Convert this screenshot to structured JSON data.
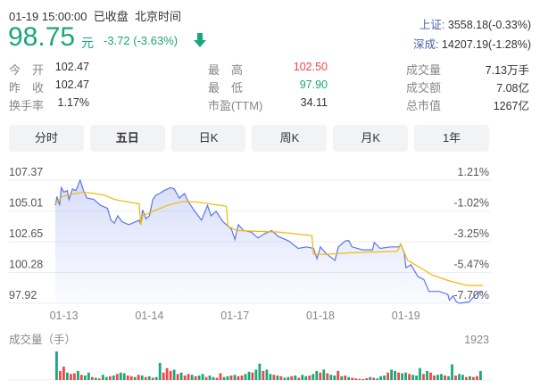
{
  "header": {
    "datetime": "01-19 15:00:00",
    "status": "已收盘",
    "timezone": "北京时间",
    "price": "98.75",
    "unit": "元",
    "change": "-3.72 (-3.63%)",
    "direction_icon": "arrow-down-icon"
  },
  "indices": [
    {
      "name": "上证:",
      "value": "3558.18(-0.33%)"
    },
    {
      "name": "深成:",
      "value": "14207.19(-1.28%)"
    }
  ],
  "stats": [
    [
      {
        "label": "今　开",
        "value": "102.47"
      },
      {
        "label": "最　高",
        "value": "102.50",
        "color": "#f04848"
      },
      {
        "label": "成交量",
        "value": "7.13万手"
      }
    ],
    [
      {
        "label": "昨　收",
        "value": "102.47"
      },
      {
        "label": "最　低",
        "value": "97.90",
        "color": "#1aa77a"
      },
      {
        "label": "成交额",
        "value": "7.08亿"
      }
    ],
    [
      {
        "label": "换手率",
        "value": "1.17%"
      },
      {
        "label": "市盈(TTM)",
        "value": "34.11"
      },
      {
        "label": "总市值",
        "value": "1267亿"
      }
    ]
  ],
  "tabs": [
    {
      "label": "分时"
    },
    {
      "label": "五日",
      "active": true
    },
    {
      "label": "日K"
    },
    {
      "label": "周K"
    },
    {
      "label": "月K"
    },
    {
      "label": "1年"
    }
  ],
  "colors": {
    "up": "#f04848",
    "down": "#1aa77a",
    "price_line": "#5b77e8",
    "avg_line": "#f5b800"
  },
  "chart_data": {
    "type": "line",
    "ylim": [
      97.92,
      107.37
    ],
    "y_ticks_left": [
      "107.37",
      "105.01",
      "102.65",
      "100.28",
      "97.92"
    ],
    "y_ticks_right": [
      "1.21%",
      "-1.02%",
      "-3.25%",
      "-5.47%",
      "-7.70%"
    ],
    "x_ticks": [
      "01-13",
      "01-14",
      "01-17",
      "01-18",
      "01-19"
    ],
    "grid": true,
    "price_series": [
      [
        0,
        105.43
      ],
      [
        0.02,
        106.12
      ],
      [
        0.05,
        105.43
      ],
      [
        0.07,
        106.8
      ],
      [
        0.1,
        106.46
      ],
      [
        0.14,
        106.57
      ],
      [
        0.16,
        105.89
      ],
      [
        0.2,
        106.69
      ],
      [
        0.24,
        106.57
      ],
      [
        0.29,
        107.37
      ],
      [
        0.33,
        106.57
      ],
      [
        0.37,
        106.0
      ],
      [
        0.45,
        105.89
      ],
      [
        0.53,
        105.43
      ],
      [
        0.61,
        105.21
      ],
      [
        0.65,
        104.3
      ],
      [
        0.69,
        104.07
      ],
      [
        0.73,
        104.64
      ],
      [
        0.78,
        104.18
      ],
      [
        0.86,
        103.95
      ],
      [
        0.94,
        104.18
      ],
      [
        0.98,
        104.3
      ],
      [
        1.0,
        103.95
      ],
      [
        1.02,
        105.09
      ],
      [
        1.06,
        104.41
      ],
      [
        1.1,
        104.64
      ],
      [
        1.14,
        105.89
      ],
      [
        1.18,
        106.23
      ],
      [
        1.22,
        106.35
      ],
      [
        1.27,
        106.57
      ],
      [
        1.35,
        106.8
      ],
      [
        1.39,
        106.69
      ],
      [
        1.45,
        106.0
      ],
      [
        1.51,
        106.35
      ],
      [
        1.55,
        105.78
      ],
      [
        1.63,
        104.98
      ],
      [
        1.71,
        104.3
      ],
      [
        1.78,
        105.43
      ],
      [
        1.82,
        104.64
      ],
      [
        1.88,
        104.98
      ],
      [
        1.96,
        104.18
      ],
      [
        2.02,
        103.84
      ],
      [
        2.06,
        103.61
      ],
      [
        2.1,
        102.82
      ],
      [
        2.14,
        103.95
      ],
      [
        2.2,
        103.5
      ],
      [
        2.29,
        103.39
      ],
      [
        2.37,
        102.93
      ],
      [
        2.45,
        103.27
      ],
      [
        2.53,
        103.5
      ],
      [
        2.61,
        103.04
      ],
      [
        2.73,
        102.7
      ],
      [
        2.84,
        102.13
      ],
      [
        2.94,
        102.25
      ],
      [
        3.02,
        102.13
      ],
      [
        3.06,
        101.34
      ],
      [
        3.1,
        102.25
      ],
      [
        3.16,
        101.79
      ],
      [
        3.2,
        101.56
      ],
      [
        3.27,
        101.22
      ],
      [
        3.31,
        102.25
      ],
      [
        3.39,
        102.7
      ],
      [
        3.43,
        102.75
      ],
      [
        3.47,
        102.25
      ],
      [
        3.59,
        102.02
      ],
      [
        3.71,
        102.02
      ],
      [
        3.73,
        102.59
      ],
      [
        3.8,
        102.13
      ],
      [
        3.92,
        102.25
      ],
      [
        4.02,
        102.25
      ],
      [
        4.04,
        102.47
      ],
      [
        4.08,
        101.79
      ],
      [
        4.1,
        100.65
      ],
      [
        4.16,
        100.88
      ],
      [
        4.24,
        99.97
      ],
      [
        4.31,
        99.74
      ],
      [
        4.37,
        98.83
      ],
      [
        4.49,
        98.83
      ],
      [
        4.59,
        98.6
      ],
      [
        4.61,
        98.15
      ],
      [
        4.65,
        98.49
      ],
      [
        4.69,
        98.03
      ],
      [
        4.73,
        97.92
      ],
      [
        4.84,
        98.03
      ],
      [
        4.92,
        98.6
      ],
      [
        4.96,
        98.83
      ],
      [
        5.0,
        98.72
      ]
    ],
    "avg_series": [
      [
        0,
        105.55
      ],
      [
        0.08,
        106.12
      ],
      [
        0.33,
        106.46
      ],
      [
        0.57,
        106.23
      ],
      [
        0.69,
        105.89
      ],
      [
        0.98,
        105.55
      ],
      [
        1.0,
        103.95
      ],
      [
        1.02,
        104.64
      ],
      [
        1.14,
        104.98
      ],
      [
        1.31,
        105.43
      ],
      [
        1.47,
        105.71
      ],
      [
        1.63,
        105.71
      ],
      [
        2.0,
        105.37
      ],
      [
        2.02,
        103.84
      ],
      [
        2.12,
        103.5
      ],
      [
        2.61,
        103.39
      ],
      [
        3.0,
        103.11
      ],
      [
        3.02,
        101.68
      ],
      [
        3.18,
        101.68
      ],
      [
        3.43,
        101.79
      ],
      [
        4.0,
        101.91
      ],
      [
        4.04,
        102.47
      ],
      [
        4.12,
        101.22
      ],
      [
        4.24,
        100.76
      ],
      [
        4.41,
        100.08
      ],
      [
        4.61,
        99.63
      ],
      [
        4.82,
        99.29
      ],
      [
        5.0,
        99.29
      ]
    ],
    "volume_label": "成交量（手）",
    "volume_max": "1923",
    "volume": [
      1923,
      600,
      900,
      500,
      400,
      450,
      600,
      350,
      300,
      500,
      200,
      150,
      100,
      350,
      200,
      250,
      300,
      400,
      500,
      450,
      300,
      250,
      200,
      350,
      300,
      200,
      250,
      150,
      200,
      1150,
      500,
      800,
      600,
      700,
      400,
      500,
      300,
      400,
      350,
      250,
      300,
      400,
      200,
      300,
      200,
      150,
      450,
      200,
      250,
      300,
      350,
      250,
      300,
      400,
      550,
      500,
      700,
      1100,
      600,
      700,
      400,
      350,
      300,
      250,
      150,
      200,
      250,
      300,
      150,
      350,
      250,
      300,
      400,
      600,
      500,
      700,
      450,
      350,
      300,
      600,
      250,
      300,
      200,
      150,
      100,
      80,
      60,
      120,
      200,
      150,
      100,
      250,
      300,
      500,
      700,
      600,
      500,
      450,
      500,
      400,
      350,
      300,
      800,
      400,
      600,
      500,
      300,
      350,
      400,
      300,
      250,
      1050,
      300,
      400,
      350,
      200,
      250,
      200,
      250,
      600
    ],
    "volume_up": [
      0,
      1,
      1,
      0,
      1,
      1,
      0,
      1,
      0,
      0,
      1,
      0,
      1,
      0,
      0,
      1,
      0,
      1,
      0,
      0,
      1,
      1,
      0,
      1,
      0,
      1,
      0,
      1,
      0,
      0,
      1,
      1,
      1,
      0,
      1,
      0,
      1,
      1,
      0,
      1,
      0,
      0,
      1,
      0,
      0,
      1,
      1,
      0,
      0,
      1,
      0,
      1,
      1,
      0,
      0,
      1,
      0,
      0,
      1,
      0,
      0,
      1,
      0,
      1,
      0,
      0,
      1,
      0,
      1,
      0,
      0,
      1,
      0,
      0,
      1,
      0,
      1,
      0,
      0,
      1,
      0,
      1,
      0,
      1,
      1,
      1,
      0,
      1,
      0,
      1,
      0,
      0,
      0,
      1,
      0,
      0,
      1,
      0,
      0,
      1,
      0,
      0,
      0,
      1,
      0,
      1,
      1,
      0,
      0,
      1,
      0,
      0,
      1,
      0,
      0,
      1,
      0,
      1,
      1,
      0
    ]
  }
}
